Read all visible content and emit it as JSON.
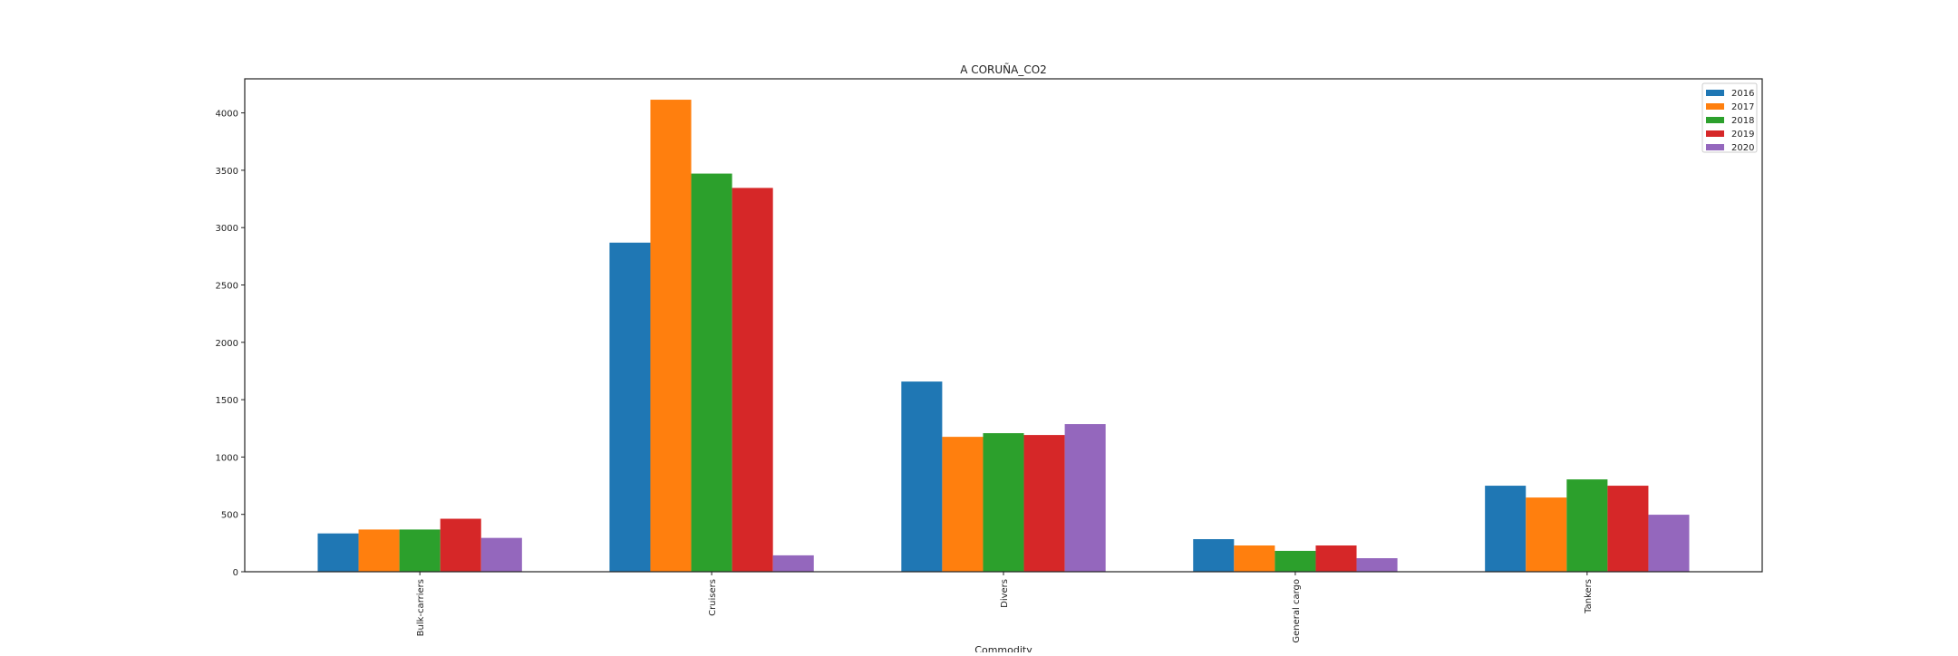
{
  "chart_data": {
    "type": "bar",
    "title": "A CORUÑA_CO2",
    "xlabel": "Commodity",
    "ylabel": "",
    "categories": [
      "Bulk-carriers",
      "Cruisers",
      "Divers",
      "General cargo",
      "Tankers"
    ],
    "series": [
      {
        "name": "2016",
        "color": "#1f77b4",
        "values": [
          334,
          2869,
          1658,
          284,
          750
        ]
      },
      {
        "name": "2017",
        "color": "#ff7f0e",
        "values": [
          368,
          4115,
          1176,
          229,
          647
        ]
      },
      {
        "name": "2018",
        "color": "#2ca02c",
        "values": [
          368,
          3471,
          1208,
          182,
          805
        ]
      },
      {
        "name": "2019",
        "color": "#d62728",
        "values": [
          462,
          3346,
          1192,
          229,
          750
        ]
      },
      {
        "name": "2020",
        "color": "#9467bd",
        "values": [
          295,
          143,
          1287,
          118,
          497
        ]
      }
    ],
    "yticks": [
      0,
      500,
      1000,
      1500,
      2000,
      2500,
      3000,
      3500,
      4000
    ],
    "ylim": [
      0,
      4297
    ],
    "grid": false,
    "legend_position": "top-right"
  }
}
